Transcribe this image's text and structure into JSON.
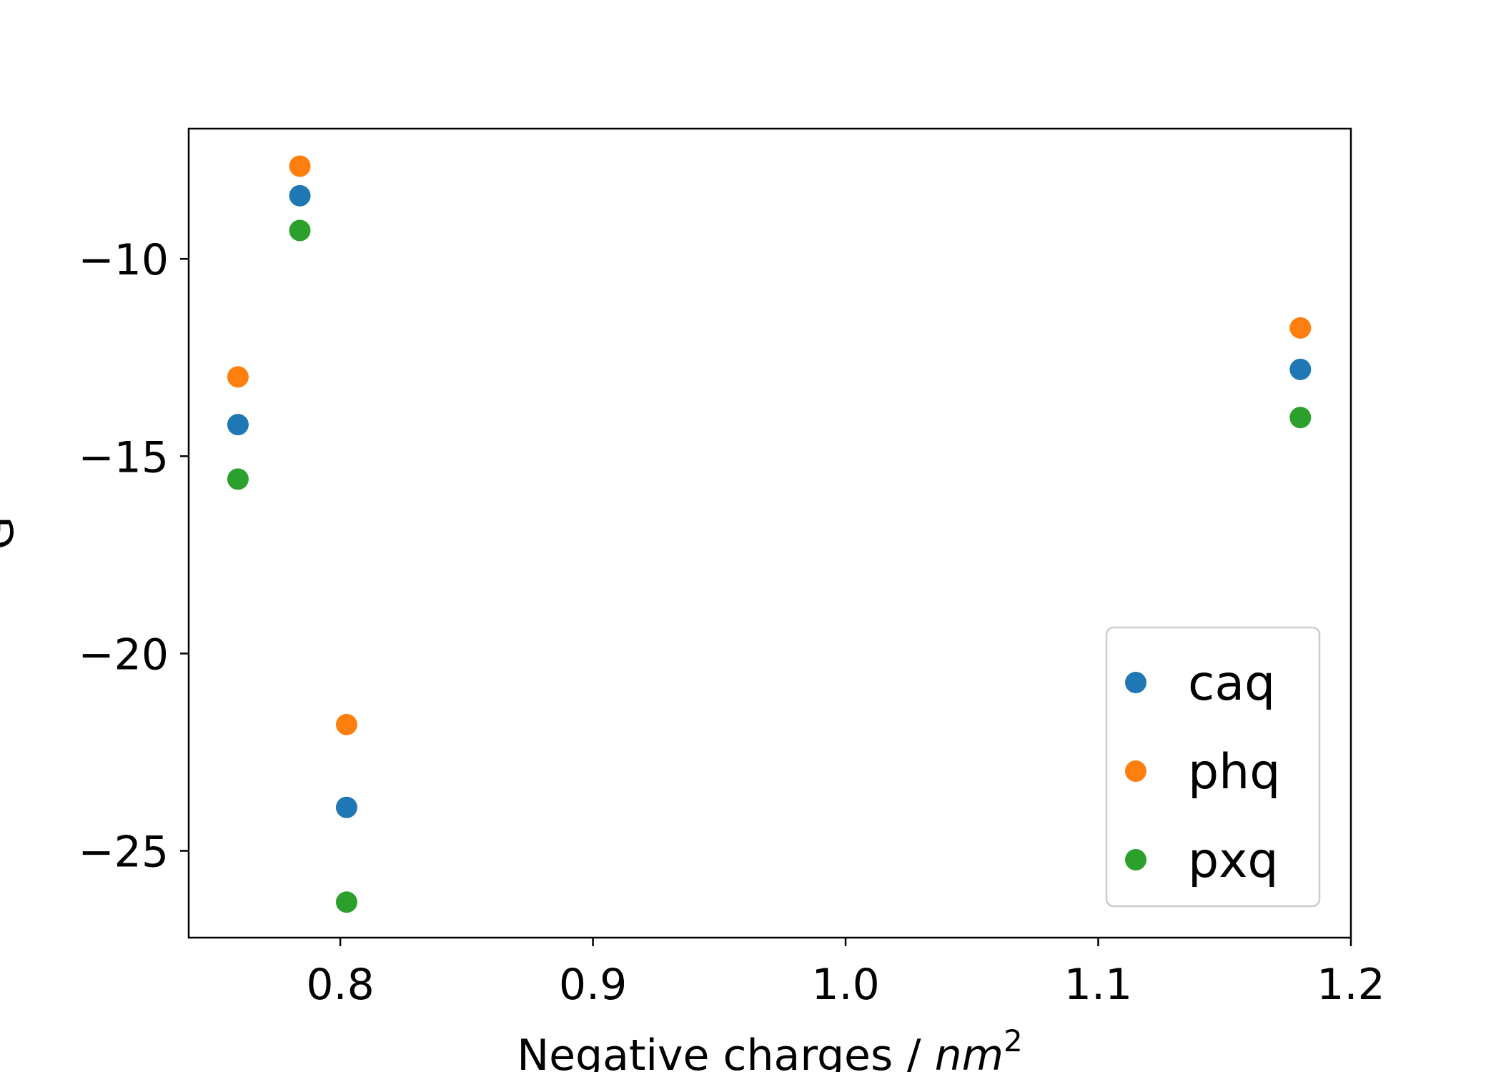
{
  "chart_data": {
    "type": "scatter",
    "xlabel": "Negative charges / nm²",
    "xlabel_prefix": "Negative charges / ",
    "xlabel_unit": "nm",
    "xlabel_exponent": "2",
    "ylabel": "G",
    "xlim": [
      0.74,
      1.2
    ],
    "ylim": [
      -27.2,
      -6.7
    ],
    "x_ticks": [
      0.8,
      0.9,
      1.0,
      1.1,
      1.2
    ],
    "x_tick_labels": [
      "0.8",
      "0.9",
      "1.0",
      "1.1",
      "1.2"
    ],
    "y_ticks": [
      -10,
      -15,
      -20,
      -25
    ],
    "y_tick_labels": [
      "−10",
      "−15",
      "−20",
      "−25"
    ],
    "grid": false,
    "legend_position": "lower-right",
    "x": [
      0.7595,
      0.784,
      0.8025,
      1.18
    ],
    "series": [
      {
        "name": "caq",
        "color": "#1f77b4",
        "values": [
          -14.2,
          -8.4,
          -23.9,
          -12.8
        ]
      },
      {
        "name": "phq",
        "color": "#ff7f0e",
        "values": [
          -12.99,
          -7.65,
          -21.8,
          -11.75
        ]
      },
      {
        "name": "pxq",
        "color": "#2ca02c",
        "values": [
          -15.58,
          -9.28,
          -26.3,
          -14.02
        ]
      }
    ]
  }
}
